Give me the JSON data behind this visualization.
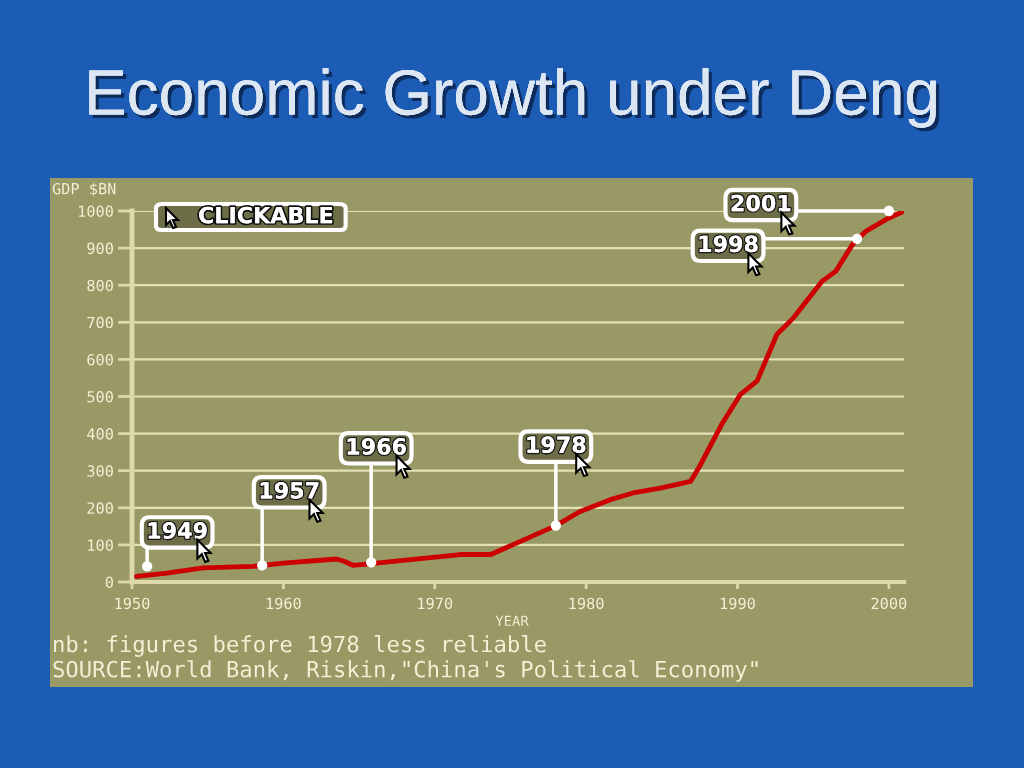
{
  "chart_data": {
    "type": "line",
    "title": "Economic Growth under Deng",
    "xlabel": "YEAR",
    "ylabel": "GDP $BN",
    "x": [
      1950.3,
      1952.3,
      1954.7,
      1958,
      1960,
      1963.5,
      1964,
      1964.6,
      1965.7,
      1966.6,
      1971.7,
      1973.7,
      1978,
      1979.6,
      1981.6,
      1983.1,
      1984.9,
      1986.9,
      1987.5,
      1989,
      1990.2,
      1991.3,
      1992.6,
      1993.7,
      1995.6,
      1996.5,
      1997.6,
      1998.5,
      1999.8,
      2001
    ],
    "values": [
      15,
      24,
      38,
      42,
      51,
      62,
      56,
      45,
      49,
      53,
      74,
      74,
      152,
      190,
      222,
      240,
      253,
      271,
      312,
      428,
      506,
      542,
      667,
      712,
      811,
      838,
      910,
      946,
      977,
      1000
    ],
    "color": "#cc0000",
    "xlim": [
      1950,
      2001
    ],
    "ylim": [
      0,
      1000
    ],
    "xticks": [
      1950,
      1960,
      1970,
      1980,
      1990,
      2000
    ],
    "yticks": [
      0,
      100,
      200,
      300,
      400,
      500,
      600,
      700,
      800,
      900,
      1000
    ],
    "grid": "y",
    "annotations": [
      "CLICKABLE",
      {
        "text": "1949",
        "x": 1951,
        "y": 42
      },
      {
        "text": "1957",
        "x": 1958.6,
        "y": 45
      },
      {
        "text": "1966",
        "x": 1965.8,
        "y": 53
      },
      {
        "text": "1978",
        "x": 1978,
        "y": 152
      },
      {
        "text": "1998",
        "x": 1997.9,
        "y": 925
      },
      {
        "text": "2001",
        "x": 2000,
        "y": 1000
      },
      "nb: figures before 1978 less reliable",
      "SOURCE:World Bank, Riskin,\"China's Political Economy\""
    ]
  }
}
